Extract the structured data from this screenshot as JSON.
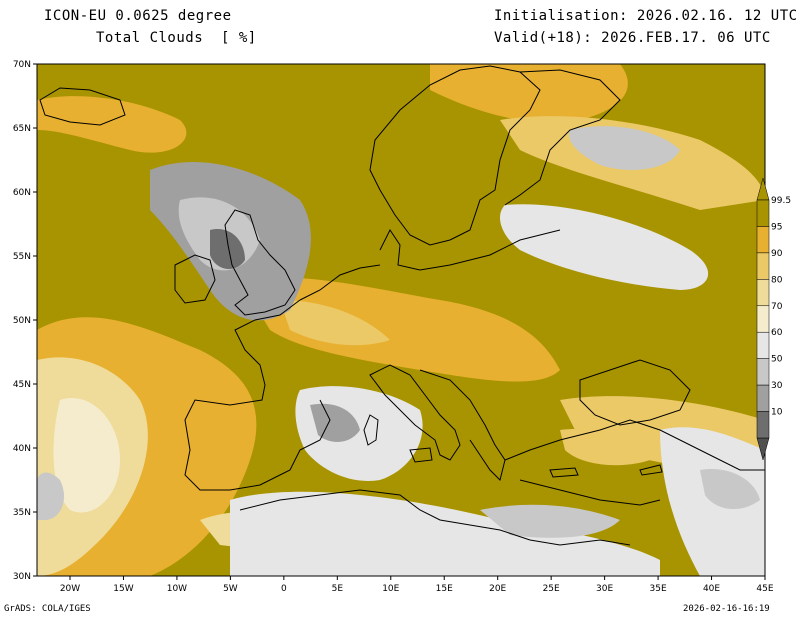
{
  "header": {
    "model": "ICON-EU 0.0625 degree",
    "field": "Total Clouds  [ %]",
    "init": "Initialisation: 2026.02.16. 12 UTC",
    "valid": "Valid(+18): 2026.FEB.17. 06 UTC"
  },
  "footer": {
    "software": "GrADS: COLA/IGES",
    "timestamp": "2026-02-16-16:19"
  },
  "map": {
    "lat_labels": [
      "70N",
      "65N",
      "60N",
      "55N",
      "50N",
      "45N",
      "40N",
      "35N",
      "30N"
    ],
    "lon_labels": [
      "20W",
      "15W",
      "10W",
      "5W",
      "0",
      "5E",
      "10E",
      "15E",
      "20E",
      "25E",
      "30E",
      "35E",
      "40E",
      "45E"
    ]
  },
  "colorbar": {
    "labels": [
      "99.5",
      "95",
      "90",
      "80",
      "70",
      "60",
      "50",
      "30",
      "10"
    ],
    "colors": [
      "#a89400",
      "#e8b030",
      "#ebc966",
      "#efdc9a",
      "#f4eccc",
      "#e6e6e6",
      "#c8c8c8",
      "#a0a0a0",
      "#6e6e6e"
    ]
  },
  "colors": {
    "full_cloud": "#a89400",
    "clear": "#e6e6e6",
    "coast": "#000000"
  }
}
